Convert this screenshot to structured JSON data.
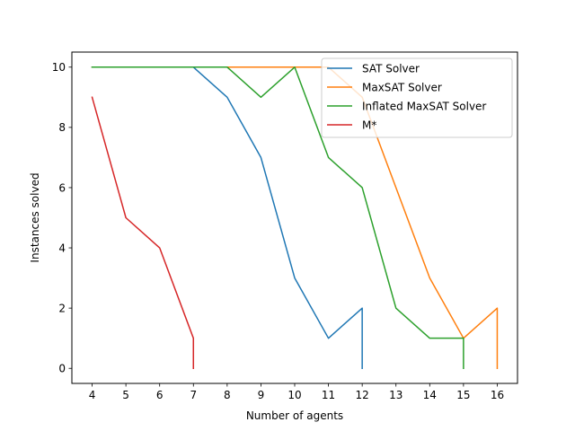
{
  "chart_data": {
    "type": "line",
    "title": "",
    "xlabel": "Number of agents",
    "ylabel": "Instances solved",
    "xlim": [
      3.4,
      16.6
    ],
    "ylim": [
      -0.5,
      10.5
    ],
    "xticks": [
      4,
      5,
      6,
      7,
      8,
      9,
      10,
      11,
      12,
      13,
      14,
      15,
      16
    ],
    "yticks": [
      0,
      2,
      4,
      6,
      8,
      10
    ],
    "grid": false,
    "legend_position": "top-right",
    "series": [
      {
        "name": "SAT Solver",
        "color": "#1f77b4",
        "points": [
          [
            4,
            10
          ],
          [
            5,
            10
          ],
          [
            6,
            10
          ],
          [
            7,
            10
          ],
          [
            8,
            9
          ],
          [
            9,
            7
          ],
          [
            10,
            3
          ],
          [
            11,
            1
          ],
          [
            12,
            2
          ],
          [
            12,
            0
          ]
        ]
      },
      {
        "name": "MaxSAT Solver",
        "color": "#ff7f0e",
        "points": [
          [
            4,
            10
          ],
          [
            5,
            10
          ],
          [
            6,
            10
          ],
          [
            7,
            10
          ],
          [
            8,
            10
          ],
          [
            9,
            10
          ],
          [
            10,
            10
          ],
          [
            11,
            10
          ],
          [
            12,
            9
          ],
          [
            13,
            6
          ],
          [
            14,
            3
          ],
          [
            15,
            1
          ],
          [
            16,
            2
          ],
          [
            16,
            0
          ]
        ]
      },
      {
        "name": "Inflated MaxSAT Solver",
        "color": "#2ca02c",
        "points": [
          [
            4,
            10
          ],
          [
            5,
            10
          ],
          [
            6,
            10
          ],
          [
            7,
            10
          ],
          [
            8,
            10
          ],
          [
            9,
            9
          ],
          [
            10,
            10
          ],
          [
            11,
            7
          ],
          [
            12,
            6
          ],
          [
            13,
            2
          ],
          [
            14,
            1
          ],
          [
            15,
            1
          ],
          [
            15,
            0
          ]
        ]
      },
      {
        "name": "M*",
        "color": "#d62728",
        "points": [
          [
            4,
            9
          ],
          [
            5,
            5
          ],
          [
            6,
            4
          ],
          [
            7,
            1
          ],
          [
            7,
            0
          ]
        ]
      }
    ]
  }
}
